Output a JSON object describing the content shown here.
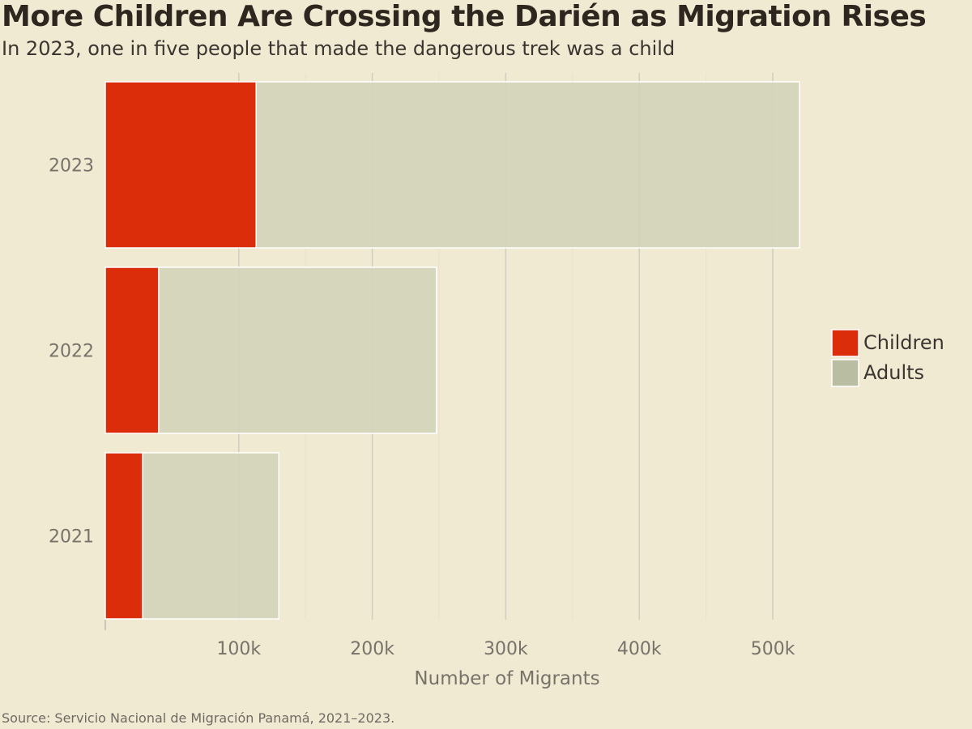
{
  "header": {
    "title": "More Children Are Crossing the Darién as Migration Rises",
    "subtitle": "In 2023, one in five people that made the dangerous trek was a child"
  },
  "footer": {
    "source": "Source: Servicio Nacional de Migración Panamá, 2021–2023."
  },
  "colors": {
    "background": "#f1ead3",
    "children": "#dc2d0b",
    "adults_bar": "#d3d4ba",
    "adults_legend": "#b9bea3",
    "grid": "#cfcdc2",
    "tick_text": "#77736b"
  },
  "chart_data": {
    "type": "bar",
    "orientation": "horizontal",
    "stacked": true,
    "title": "More Children Are Crossing the Darién as Migration Rises",
    "subtitle": "In 2023, one in five people that made the dangerous trek was a child",
    "categories": [
      "2023",
      "2022",
      "2021"
    ],
    "series": [
      {
        "name": "Children",
        "values": [
          113000,
          40000,
          28000
        ]
      },
      {
        "name": "Adults",
        "values": [
          407000,
          208000,
          102000
        ]
      }
    ],
    "xlabel": "Number of Migrants",
    "ylabel": "",
    "xlim": [
      0,
      540000
    ],
    "xticks": [
      100000,
      200000,
      300000,
      400000,
      500000
    ],
    "xtick_labels": [
      "100k",
      "200k",
      "300k",
      "400k",
      "500k"
    ],
    "grid": "vertical",
    "legend": {
      "placement": "right",
      "items": [
        "Children",
        "Adults"
      ]
    }
  }
}
